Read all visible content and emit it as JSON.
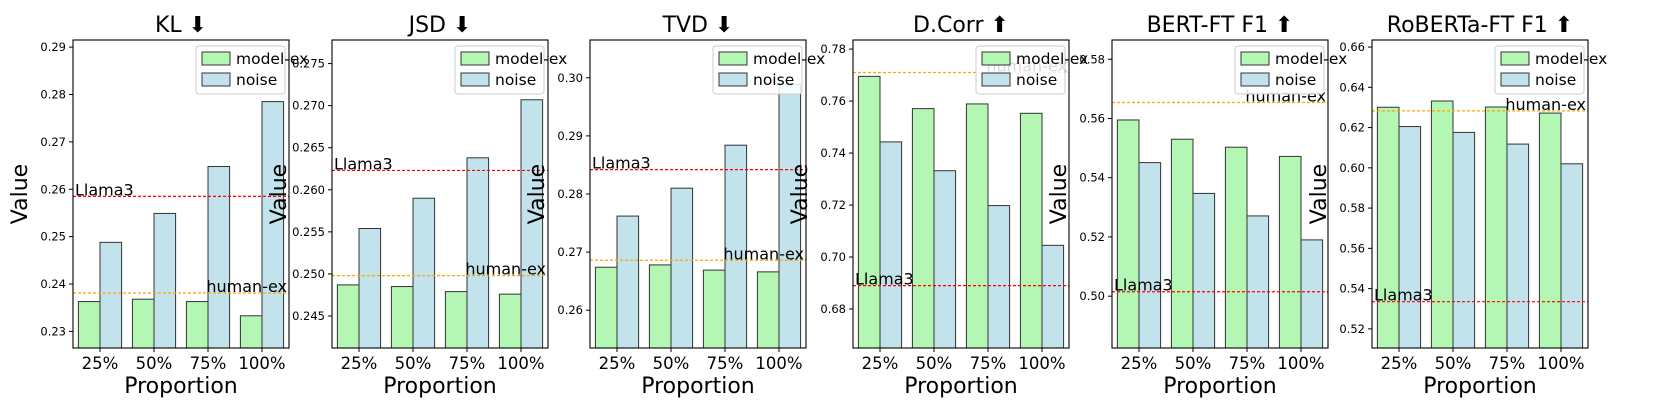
{
  "chart_data": [
    {
      "type": "bar",
      "title": "KL ⬇",
      "xlabel": "Proportion",
      "ylabel": "Value",
      "categories": [
        "25%",
        "50%",
        "75%",
        "100%"
      ],
      "series": [
        {
          "name": "model-ex",
          "values": [
            0.2363,
            0.2368,
            0.2363,
            0.2333
          ]
        },
        {
          "name": "noise",
          "values": [
            0.2488,
            0.2549,
            0.2648,
            0.2785
          ]
        }
      ],
      "ylim": [
        0.2265,
        0.2915
      ],
      "yticks": [
        0.23,
        0.24,
        0.25,
        0.26,
        0.27,
        0.28,
        0.29
      ],
      "ytick_labels": [
        "0.23",
        "0.24",
        "0.25",
        "0.26",
        "0.27",
        "0.28",
        "0.29"
      ],
      "ref_lines": [
        {
          "label": "Llama3",
          "value": 0.2585,
          "color": "#ff0000",
          "label_side": "left"
        },
        {
          "label": "human-ex",
          "value": 0.2381,
          "color": "#ffa500",
          "label_side": "right"
        }
      ],
      "legend": "top-right",
      "grid": false
    },
    {
      "type": "bar",
      "title": "JSD ⬇",
      "xlabel": "Proportion",
      "ylabel": "Value",
      "categories": [
        "25%",
        "50%",
        "75%",
        "100%"
      ],
      "series": [
        {
          "name": "model-ex",
          "values": [
            0.2487,
            0.2485,
            0.2479,
            0.2476
          ]
        },
        {
          "name": "noise",
          "values": [
            0.2554,
            0.259,
            0.2638,
            0.2707
          ]
        }
      ],
      "ylim": [
        0.2412,
        0.2778
      ],
      "yticks": [
        0.245,
        0.25,
        0.255,
        0.26,
        0.265,
        0.27,
        0.275
      ],
      "ytick_labels": [
        "0.245",
        "0.250",
        "0.255",
        "0.260",
        "0.265",
        "0.270",
        "0.275"
      ],
      "ref_lines": [
        {
          "label": "Llama3",
          "value": 0.2623,
          "color": "#ff0000",
          "label_side": "left"
        },
        {
          "label": "human-ex",
          "value": 0.2498,
          "color": "#ffa500",
          "label_side": "right"
        }
      ],
      "legend": "top-right",
      "grid": false
    },
    {
      "type": "bar",
      "title": "TVD ⬇",
      "xlabel": "Proportion",
      "ylabel": "Value",
      "categories": [
        "25%",
        "50%",
        "75%",
        "100%"
      ],
      "series": [
        {
          "name": "model-ex",
          "values": [
            0.2674,
            0.2678,
            0.2669,
            0.2666
          ]
        },
        {
          "name": "noise",
          "values": [
            0.2762,
            0.281,
            0.2884,
            0.2989
          ]
        }
      ],
      "ylim": [
        0.2535,
        0.3065
      ],
      "yticks": [
        0.26,
        0.27,
        0.28,
        0.29,
        0.3
      ],
      "ytick_labels": [
        "0.26",
        "0.27",
        "0.28",
        "0.29",
        "0.30"
      ],
      "ref_lines": [
        {
          "label": "Llama3",
          "value": 0.2842,
          "color": "#ff0000",
          "label_side": "left"
        },
        {
          "label": "human-ex",
          "value": 0.2686,
          "color": "#ffa500",
          "label_side": "right"
        }
      ],
      "legend": "top-right",
      "grid": false
    },
    {
      "type": "bar",
      "title": "D.Corr ⬆",
      "xlabel": "Proportion",
      "ylabel": "Value",
      "categories": [
        "25%",
        "50%",
        "75%",
        "100%"
      ],
      "series": [
        {
          "name": "model-ex",
          "values": [
            0.7695,
            0.7571,
            0.7589,
            0.7553
          ]
        },
        {
          "name": "noise",
          "values": [
            0.7443,
            0.7332,
            0.7198,
            0.7045
          ]
        }
      ],
      "ylim": [
        0.665,
        0.7835
      ],
      "yticks": [
        0.68,
        0.7,
        0.72,
        0.74,
        0.76,
        0.78
      ],
      "ytick_labels": [
        "0.68",
        "0.70",
        "0.72",
        "0.74",
        "0.76",
        "0.78"
      ],
      "ref_lines": [
        {
          "label": "Llama3",
          "value": 0.689,
          "color": "#ff0000",
          "label_side": "left"
        },
        {
          "label": "human-ex",
          "value": 0.771,
          "color": "#ffa500",
          "label_side": "right"
        }
      ],
      "legend": "top-right",
      "grid": false
    },
    {
      "type": "bar",
      "title": "BERT-FT F1 ⬆",
      "xlabel": "Proportion",
      "ylabel": "Value",
      "categories": [
        "25%",
        "50%",
        "75%",
        "100%"
      ],
      "series": [
        {
          "name": "model-ex",
          "values": [
            0.5595,
            0.553,
            0.5503,
            0.5472
          ]
        },
        {
          "name": "noise",
          "values": [
            0.5451,
            0.5347,
            0.5271,
            0.519
          ]
        }
      ],
      "ylim": [
        0.4825,
        0.5865
      ],
      "yticks": [
        0.5,
        0.52,
        0.54,
        0.56,
        0.58
      ],
      "ytick_labels": [
        "0.50",
        "0.52",
        "0.54",
        "0.56",
        "0.58"
      ],
      "ref_lines": [
        {
          "label": "Llama3",
          "value": 0.5015,
          "color": "#ff0000",
          "label_side": "left"
        },
        {
          "label": "human-ex",
          "value": 0.5654,
          "color": "#ffa500",
          "label_side": "right"
        }
      ],
      "legend": "top-right",
      "grid": false
    },
    {
      "type": "bar",
      "title": "RoBERTa-FT F1 ⬆",
      "xlabel": "Proportion",
      "ylabel": "Value",
      "categories": [
        "25%",
        "50%",
        "75%",
        "100%"
      ],
      "series": [
        {
          "name": "model-ex",
          "values": [
            0.6301,
            0.6332,
            0.6302,
            0.6272
          ]
        },
        {
          "name": "noise",
          "values": [
            0.6205,
            0.6176,
            0.6118,
            0.602
          ]
        }
      ],
      "ylim": [
        0.5105,
        0.6635
      ],
      "yticks": [
        0.52,
        0.54,
        0.56,
        0.58,
        0.6,
        0.62,
        0.64,
        0.66
      ],
      "ytick_labels": [
        "0.52",
        "0.54",
        "0.56",
        "0.58",
        "0.60",
        "0.62",
        "0.64",
        "0.66"
      ],
      "ref_lines": [
        {
          "label": "Llama3",
          "value": 0.5335,
          "color": "#ff0000",
          "label_side": "left"
        },
        {
          "label": "human-ex",
          "value": 0.6283,
          "color": "#ffa500",
          "label_side": "right"
        }
      ],
      "legend": "top-right",
      "grid": false
    }
  ],
  "colors": {
    "model-ex": "#b4f6b4",
    "noise": "#c2e2ec",
    "edge": "#333333"
  }
}
